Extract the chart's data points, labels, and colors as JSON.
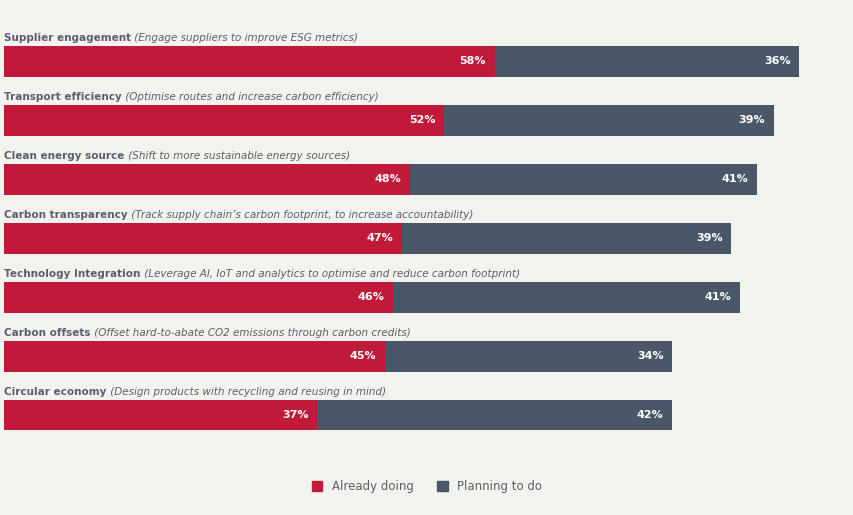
{
  "short_labels": [
    "Supplier engagement",
    "Transport efficiency",
    "Clean energy source",
    "Carbon transparency",
    "Technology Integration",
    "Carbon offsets",
    "Circular economy"
  ],
  "italic_labels": [
    "(Engage suppliers to improve ESG metrics)",
    "(Optimise routes and increase carbon efficiency)",
    "(Shift to more sustainable energy sources)",
    "(Track supply chain’s carbon footprint, to increase accountability)",
    "(Leverage AI, IoT and analytics to optimise and reduce carbon footprint)",
    "(Offset hard-to-abate CO2 emissions through carbon credits)",
    "(Design products with recycling and reusing in mind)"
  ],
  "already_doing": [
    58,
    52,
    48,
    47,
    46,
    45,
    37
  ],
  "planning_to_do": [
    36,
    39,
    41,
    39,
    41,
    34,
    42
  ],
  "color_already": "#c0193a",
  "color_planning": "#4a5768",
  "bar_height": 0.52,
  "background_color": "#f2f2ee",
  "label_bold_color": "#5a5f6e",
  "label_italic_color": "#5a5f6e",
  "pct_text_color": "#ffffff",
  "legend_already": "Already doing",
  "legend_planning": "Planning to do",
  "legend_color": "#5a5f6e",
  "figsize": [
    8.54,
    5.15
  ],
  "dpi": 100
}
